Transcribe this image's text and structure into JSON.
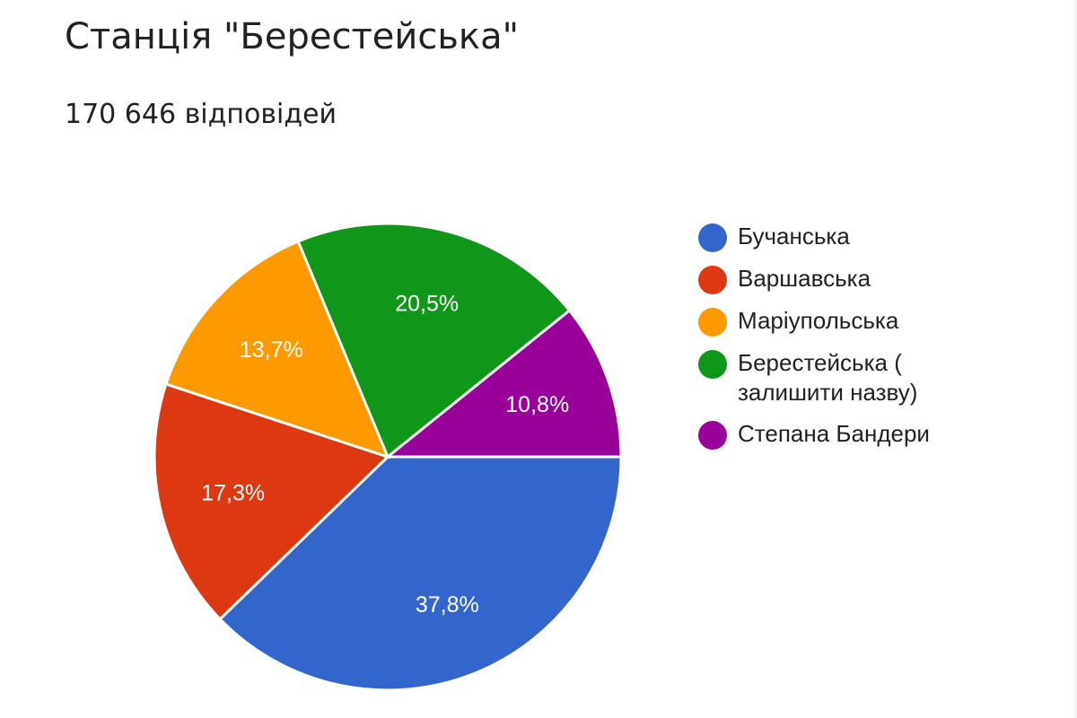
{
  "header": {
    "title": "Станція \"Берестейська\"",
    "responses": "170 646 відповідей"
  },
  "legend": [
    {
      "label": "Бучанська",
      "color": "#3366cc"
    },
    {
      "label": "Варшавська",
      "color": "#dc3912"
    },
    {
      "label": "Маріупольська",
      "color": "#ff9900"
    },
    {
      "label": "Берестейська ( залишити назву)",
      "color": "#109618"
    },
    {
      "label": "Степана Бандери",
      "color": "#990099"
    }
  ],
  "slices": [
    {
      "label": "37,8%",
      "value": 37.8,
      "color": "#3366cc"
    },
    {
      "label": "17,3%",
      "value": 17.3,
      "color": "#dc3912"
    },
    {
      "label": "13,7%",
      "value": 13.7,
      "color": "#ff9900"
    },
    {
      "label": "20,5%",
      "value": 20.5,
      "color": "#109618"
    },
    {
      "label": "10,8%",
      "value": 10.8,
      "color": "#990099"
    }
  ],
  "chart_data": {
    "type": "pie",
    "title": "Станція \"Берестейська\"",
    "subtitle": "170 646 відповідей",
    "categories": [
      "Бучанська",
      "Варшавська",
      "Маріупольська",
      "Берестейська ( залишити назву)",
      "Степана Бандери"
    ],
    "values": [
      37.8,
      17.3,
      13.7,
      20.5,
      10.8
    ],
    "value_labels": [
      "37,8%",
      "17,3%",
      "13,7%",
      "20,5%",
      "10,8%"
    ],
    "colors": [
      "#3366cc",
      "#dc3912",
      "#ff9900",
      "#109618",
      "#990099"
    ],
    "legend_position": "right"
  }
}
